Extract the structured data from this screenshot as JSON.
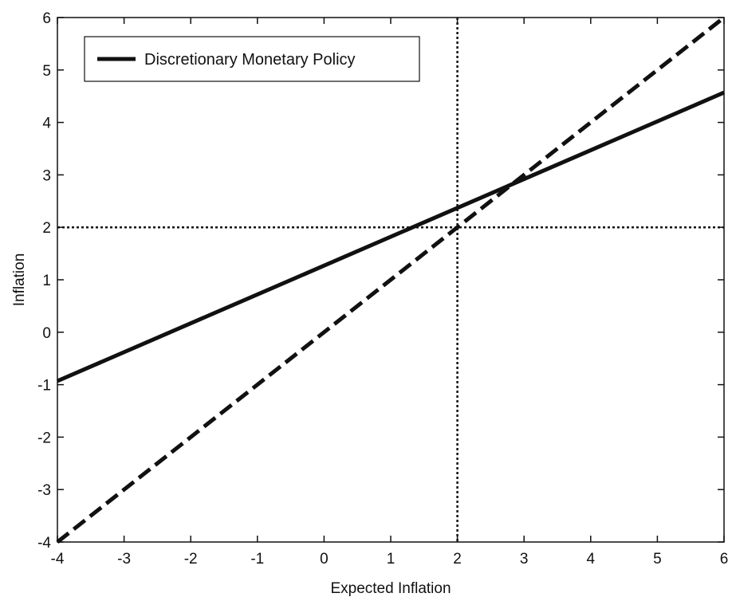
{
  "chart_data": {
    "type": "line",
    "title": "",
    "xlabel": "Expected Inflation",
    "ylabel": "Inflation",
    "xlim": [
      -4,
      6
    ],
    "ylim": [
      -4,
      6
    ],
    "xticks": [
      "-4",
      "-3",
      "-2",
      "-1",
      "0",
      "1",
      "2",
      "3",
      "4",
      "5",
      "6"
    ],
    "yticks": [
      "-4",
      "-3",
      "-2",
      "-1",
      "0",
      "1",
      "2",
      "3",
      "4",
      "5",
      "6"
    ],
    "grid": false,
    "legend_position": "top-left",
    "series": [
      {
        "name": "Discretionary Monetary Policy",
        "style": "solid",
        "color": "#111111",
        "x": [
          -4,
          6
        ],
        "y": [
          -0.93,
          4.57
        ]
      },
      {
        "style": "dashed",
        "color": "#111111",
        "x": [
          -4,
          6
        ],
        "y": [
          -4,
          6
        ]
      }
    ],
    "reference_lines": [
      {
        "orientation": "horizontal",
        "value": 2,
        "style": "dotted"
      },
      {
        "orientation": "vertical",
        "value": 2,
        "style": "dotted"
      }
    ]
  }
}
